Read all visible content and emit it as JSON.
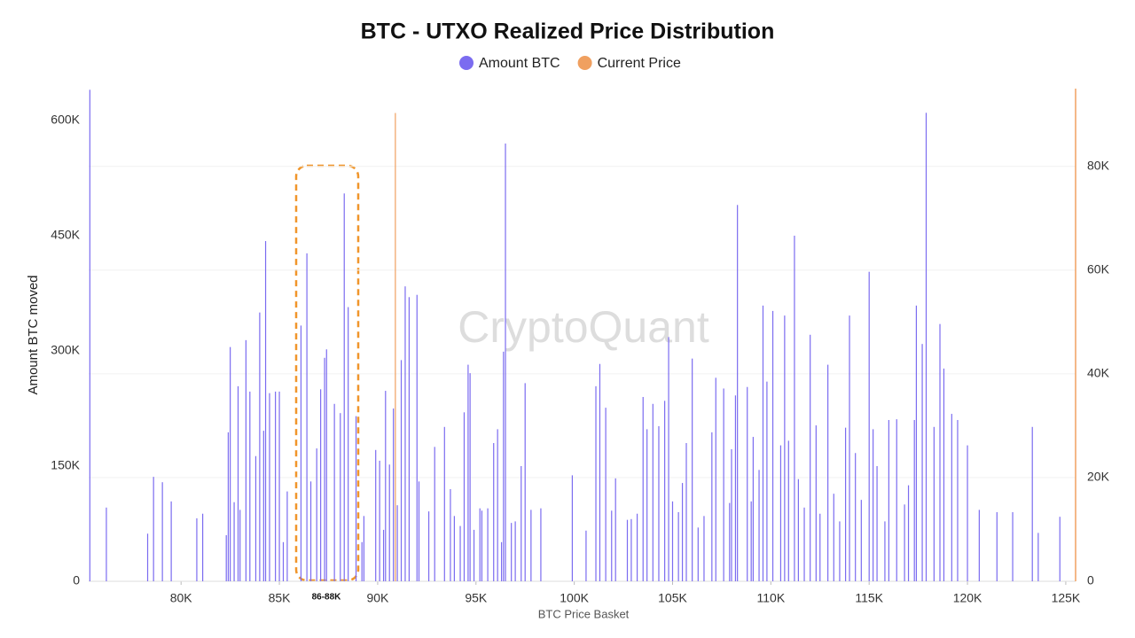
{
  "chart_data": {
    "type": "bar",
    "title": "BTC - UTXO Realized Price Distribution",
    "xlabel": "BTC Price Basket",
    "ylabel": "Amount BTC moved",
    "watermark": "CryptoQuant",
    "annotations": [
      {
        "text": "86-88K"
      }
    ],
    "legend": "top",
    "grid": true,
    "xlim": [
      75300,
      125500
    ],
    "xticks": [
      {
        "value": 80000,
        "label": "80K"
      },
      {
        "value": 85000,
        "label": "85K"
      },
      {
        "value": 90000,
        "label": "90K"
      },
      {
        "value": 95000,
        "label": "95K"
      },
      {
        "value": 100000,
        "label": "100K"
      },
      {
        "value": 105000,
        "label": "105K"
      },
      {
        "value": 110000,
        "label": "110K"
      },
      {
        "value": 115000,
        "label": "115K"
      },
      {
        "value": 120000,
        "label": "120K"
      },
      {
        "value": 125000,
        "label": "125K"
      }
    ],
    "ylim": [
      0,
      641500
    ],
    "yticks": [
      0,
      {
        "value": 150000,
        "label": "150K"
      },
      {
        "value": 300000,
        "label": "300K"
      },
      {
        "value": 450000,
        "label": "450K"
      },
      {
        "value": 600000,
        "label": "600K"
      }
    ],
    "y2lim": [
      0,
      95000
    ],
    "y2ticks": [
      0,
      {
        "value": 20000,
        "label": "20K"
      },
      {
        "value": 40000,
        "label": "40K"
      },
      {
        "value": 60000,
        "label": "60K"
      },
      {
        "value": 80000,
        "label": "80K"
      }
    ],
    "series": [
      {
        "name": "Amount BTC",
        "color": "#7b6cf0",
        "x": [
          75360,
          76200,
          78300,
          78600,
          79050,
          79500,
          80800,
          81100,
          82300,
          82400,
          82500,
          82700,
          82900,
          83000,
          83300,
          83500,
          83800,
          84000,
          84200,
          84300,
          84500,
          84800,
          85000,
          85200,
          85400,
          86100,
          86400,
          86600,
          86900,
          87100,
          87300,
          87400,
          87800,
          88100,
          88300,
          88500,
          88900,
          89200,
          89300,
          89900,
          90100,
          90300,
          90400,
          90600,
          90800,
          91000,
          91200,
          91400,
          91600,
          92000,
          92100,
          92600,
          92900,
          93400,
          93700,
          93900,
          94200,
          94400,
          94600,
          94700,
          94900,
          95200,
          95300,
          95600,
          95900,
          96100,
          96300,
          96400,
          96500,
          96800,
          97000,
          97300,
          97500,
          97800,
          98300,
          99900,
          100600,
          101100,
          101300,
          101600,
          101900,
          102100,
          102700,
          102900,
          103200,
          103500,
          103700,
          104000,
          104300,
          104600,
          104800,
          105000,
          105300,
          105500,
          105700,
          106000,
          106300,
          106600,
          107000,
          107200,
          107600,
          107900,
          108000,
          108200,
          108300,
          108800,
          109000,
          109100,
          109400,
          109600,
          109800,
          110100,
          110500,
          110700,
          110900,
          111200,
          111400,
          111700,
          112000,
          112300,
          112500,
          112900,
          113200,
          113500,
          113800,
          114000,
          114300,
          114600,
          115000,
          115200,
          115400,
          115800,
          116000,
          116400,
          116800,
          117000,
          117300,
          117400,
          117700,
          117900,
          118300,
          118600,
          118800,
          119200,
          119500,
          120000,
          120600,
          121500,
          122300,
          123300,
          123600,
          124700
        ],
        "values": [
          640000,
          96000,
          62000,
          136000,
          129000,
          104000,
          82000,
          88000,
          60000,
          194000,
          305000,
          103000,
          254000,
          93000,
          314000,
          247000,
          163000,
          350000,
          196000,
          443000,
          245000,
          247000,
          247000,
          51000,
          117000,
          333000,
          427000,
          130000,
          173000,
          250000,
          291000,
          302000,
          231000,
          219000,
          505000,
          357000,
          215000,
          51000,
          85000,
          171000,
          157000,
          67000,
          248000,
          152000,
          225000,
          99000,
          288000,
          384000,
          370000,
          373000,
          130000,
          91000,
          175000,
          201000,
          120000,
          85000,
          72000,
          220000,
          282000,
          271000,
          67000,
          95000,
          92000,
          95000,
          180000,
          198000,
          51000,
          299000,
          570000,
          76000,
          78000,
          150000,
          258000,
          93000,
          95000,
          138000,
          66000,
          254000,
          283000,
          226000,
          92000,
          134000,
          80000,
          81000,
          88000,
          240000,
          198000,
          231000,
          202000,
          235000,
          318000,
          104000,
          90000,
          128000,
          180000,
          290000,
          70000,
          85000,
          194000,
          265000,
          251000,
          102000,
          172000,
          242000,
          490000,
          253000,
          104000,
          188000,
          145000,
          359000,
          260000,
          352000,
          177000,
          346000,
          183000,
          450000,
          133000,
          96000,
          321000,
          203000,
          88000,
          282000,
          114000,
          78000,
          200000,
          346000,
          167000,
          106000,
          403000,
          198000,
          150000,
          78000,
          210000,
          211000,
          100000,
          125000,
          210000,
          359000,
          309000,
          610000,
          201000,
          335000,
          277000,
          218000,
          210000,
          177000,
          93000,
          90000,
          90000,
          201000,
          63000,
          84000
        ]
      },
      {
        "name": "Current Price",
        "color": "#f0a060",
        "axis": "y2",
        "x": [
          90900
        ],
        "values": [
          90300
        ]
      }
    ]
  }
}
